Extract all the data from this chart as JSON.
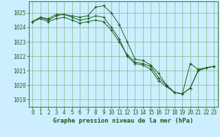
{
  "background_color": "#cceeff",
  "plot_bg_color": "#cceeff",
  "grid_color": "#66aa66",
  "line_color": "#1a5c1a",
  "marker_color": "#1a5c1a",
  "title": "Graphe pression niveau de la mer (hPa)",
  "tick_fontsize": 5.5,
  "title_fontsize": 6.5,
  "xlim": [
    -0.5,
    23.5
  ],
  "ylim": [
    1018.5,
    1025.8
  ],
  "yticks": [
    1019,
    1020,
    1021,
    1022,
    1023,
    1024,
    1025
  ],
  "xticks": [
    0,
    1,
    2,
    3,
    4,
    5,
    6,
    7,
    8,
    9,
    10,
    11,
    12,
    13,
    14,
    15,
    16,
    17,
    18,
    19,
    20,
    21,
    22,
    23
  ],
  "series1_x": [
    0,
    1,
    2,
    3,
    4,
    5,
    6,
    7,
    8,
    9,
    10,
    11,
    12,
    13,
    14,
    15,
    16,
    17,
    18,
    19,
    20,
    21,
    22,
    23
  ],
  "series1_y": [
    1024.4,
    1024.7,
    1024.6,
    1024.9,
    1024.9,
    1024.8,
    1024.7,
    1024.8,
    1025.4,
    1025.5,
    1025.0,
    1024.2,
    1023.0,
    1021.8,
    1021.7,
    1021.4,
    1020.8,
    1020.0,
    1019.5,
    1019.4,
    1019.8,
    1021.0,
    1021.2,
    1021.3
  ],
  "series2_x": [
    0,
    1,
    2,
    3,
    4,
    5,
    6,
    7,
    8,
    9,
    10,
    11,
    12,
    13,
    14,
    15,
    16,
    17,
    18,
    19,
    20,
    21,
    22,
    23
  ],
  "series2_y": [
    1024.4,
    1024.7,
    1024.5,
    1024.8,
    1024.9,
    1024.7,
    1024.5,
    1024.6,
    1024.8,
    1024.7,
    1024.0,
    1023.2,
    1022.0,
    1021.5,
    1021.4,
    1021.1,
    1020.3,
    1019.9,
    1019.5,
    1019.4,
    1019.8,
    1021.0,
    1021.2,
    1021.3
  ],
  "series3_x": [
    0,
    1,
    2,
    3,
    4,
    5,
    6,
    7,
    8,
    9,
    10,
    11,
    12,
    13,
    14,
    15,
    16,
    17,
    18,
    19,
    20,
    21,
    22,
    23
  ],
  "series3_y": [
    1024.4,
    1024.6,
    1024.4,
    1024.6,
    1024.7,
    1024.5,
    1024.3,
    1024.4,
    1024.5,
    1024.4,
    1023.8,
    1023.0,
    1022.1,
    1021.6,
    1021.5,
    1021.3,
    1020.5,
    1020.0,
    1019.5,
    1019.4,
    1021.5,
    1021.1,
    1021.2,
    1021.3
  ]
}
